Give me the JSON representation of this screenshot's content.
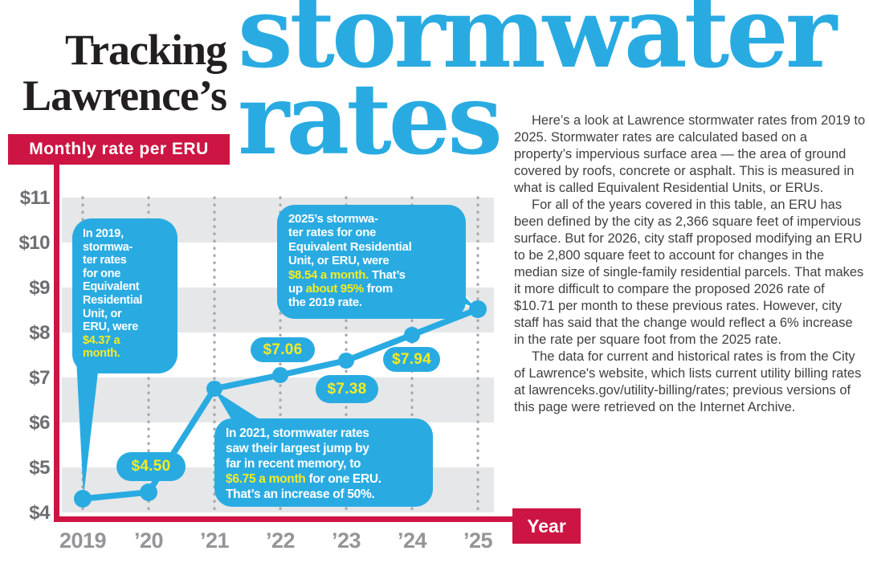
{
  "header": {
    "kicker_line1": "Tracking",
    "kicker_line2": "Lawrence’s",
    "title_line1": "stormwater",
    "title_line2": "rates",
    "chart_label": "Monthly rate per ERU"
  },
  "colors": {
    "blue": "#29abe2",
    "red": "#cd1543",
    "yellow": "#f5eb21",
    "band_gray": "#e6e7e8",
    "grid_dot_gray": "#a7a9ac",
    "ytick_gray": "#6d6e71",
    "xtick_gray": "#939598"
  },
  "chart_data": {
    "type": "line",
    "title": "Monthly rate per ERU",
    "xlabel": "Year",
    "ylabel": "Monthly rate per ERU ($)",
    "categories": [
      "2019",
      "2020",
      "2021",
      "2022",
      "2023",
      "2024",
      "2025"
    ],
    "values": [
      4.37,
      4.5,
      6.75,
      7.06,
      7.38,
      7.94,
      8.54
    ],
    "point_labels": [
      "$4.37",
      "$4.50",
      "$6.75",
      "$7.06",
      "$7.38",
      "$7.94",
      "$8.54"
    ],
    "ylim": [
      4,
      11
    ],
    "y_tick_step": 1,
    "grid": "vertical-dotted",
    "band_stripes": true,
    "legend": "none"
  },
  "axis": {
    "y_ticks": [
      "$11",
      "$10",
      "$9",
      "$8",
      "$7",
      "$6",
      "$5",
      "$4"
    ],
    "x_ticks": [
      "2019",
      "’20",
      "’21",
      "’22",
      "’23",
      "’24",
      "’25"
    ],
    "x_title": "Year"
  },
  "callouts": {
    "c2019": {
      "segments": [
        {
          "text": "In 2019,\nstormwa-\nter rates\nfor one\nEquivalent\nResidential\nUnit, or\nERU, were\n",
          "hl": false
        },
        {
          "text": "$4.37 a\nmonth.",
          "hl": true
        }
      ]
    },
    "c2025": {
      "segments": [
        {
          "text": "2025’s stormwa-\nter rates for one\nEquivalent Residential\nUnit, or ERU, were\n",
          "hl": false
        },
        {
          "text": "$8.54 a month.",
          "hl": true
        },
        {
          "text": " That’s\nup ",
          "hl": false
        },
        {
          "text": "about 95%",
          "hl": true
        },
        {
          "text": " from\nthe 2019 rate.",
          "hl": false
        }
      ]
    },
    "c2021": {
      "segments": [
        {
          "text": "In 2021, stormwater rates\nsaw their largest jump by\nfar in recent memory, to\n",
          "hl": false
        },
        {
          "text": "$6.75 a month",
          "hl": true
        },
        {
          "text": " for one ERU.\nThat’s an increase of 50%.",
          "hl": false
        }
      ]
    }
  },
  "body": {
    "paragraphs": [
      "Here’s a look at Lawrence stormwater rates from 2019 to 2025. Stormwater rates are calculated based on a property’s impervious surface area — the area of ground covered by roofs, concrete or asphalt. This is measured in what is called Equivalent Residential Units, or ERUs.",
      "For all of the years covered in this table, an ERU has been defined by the city as 2,366 square feet of impervious surface. But for 2026, city staff proposed modifying an ERU to be 2,800 square feet to account for changes in the median size of single-family residential parcels. That makes it more difficult to compare the proposed 2026 rate of $10.71 per month to these previous rates. However, city staff has said that the change would reflect a 6% increase in the rate per square foot from the 2025 rate.",
      "The data for current and historical rates is from the City of Lawrence's website, which lists current utility billing rates at lawrenceks.gov/utility-billing/rates; previous versions of this page were retrieved on the Internet Archive."
    ]
  }
}
